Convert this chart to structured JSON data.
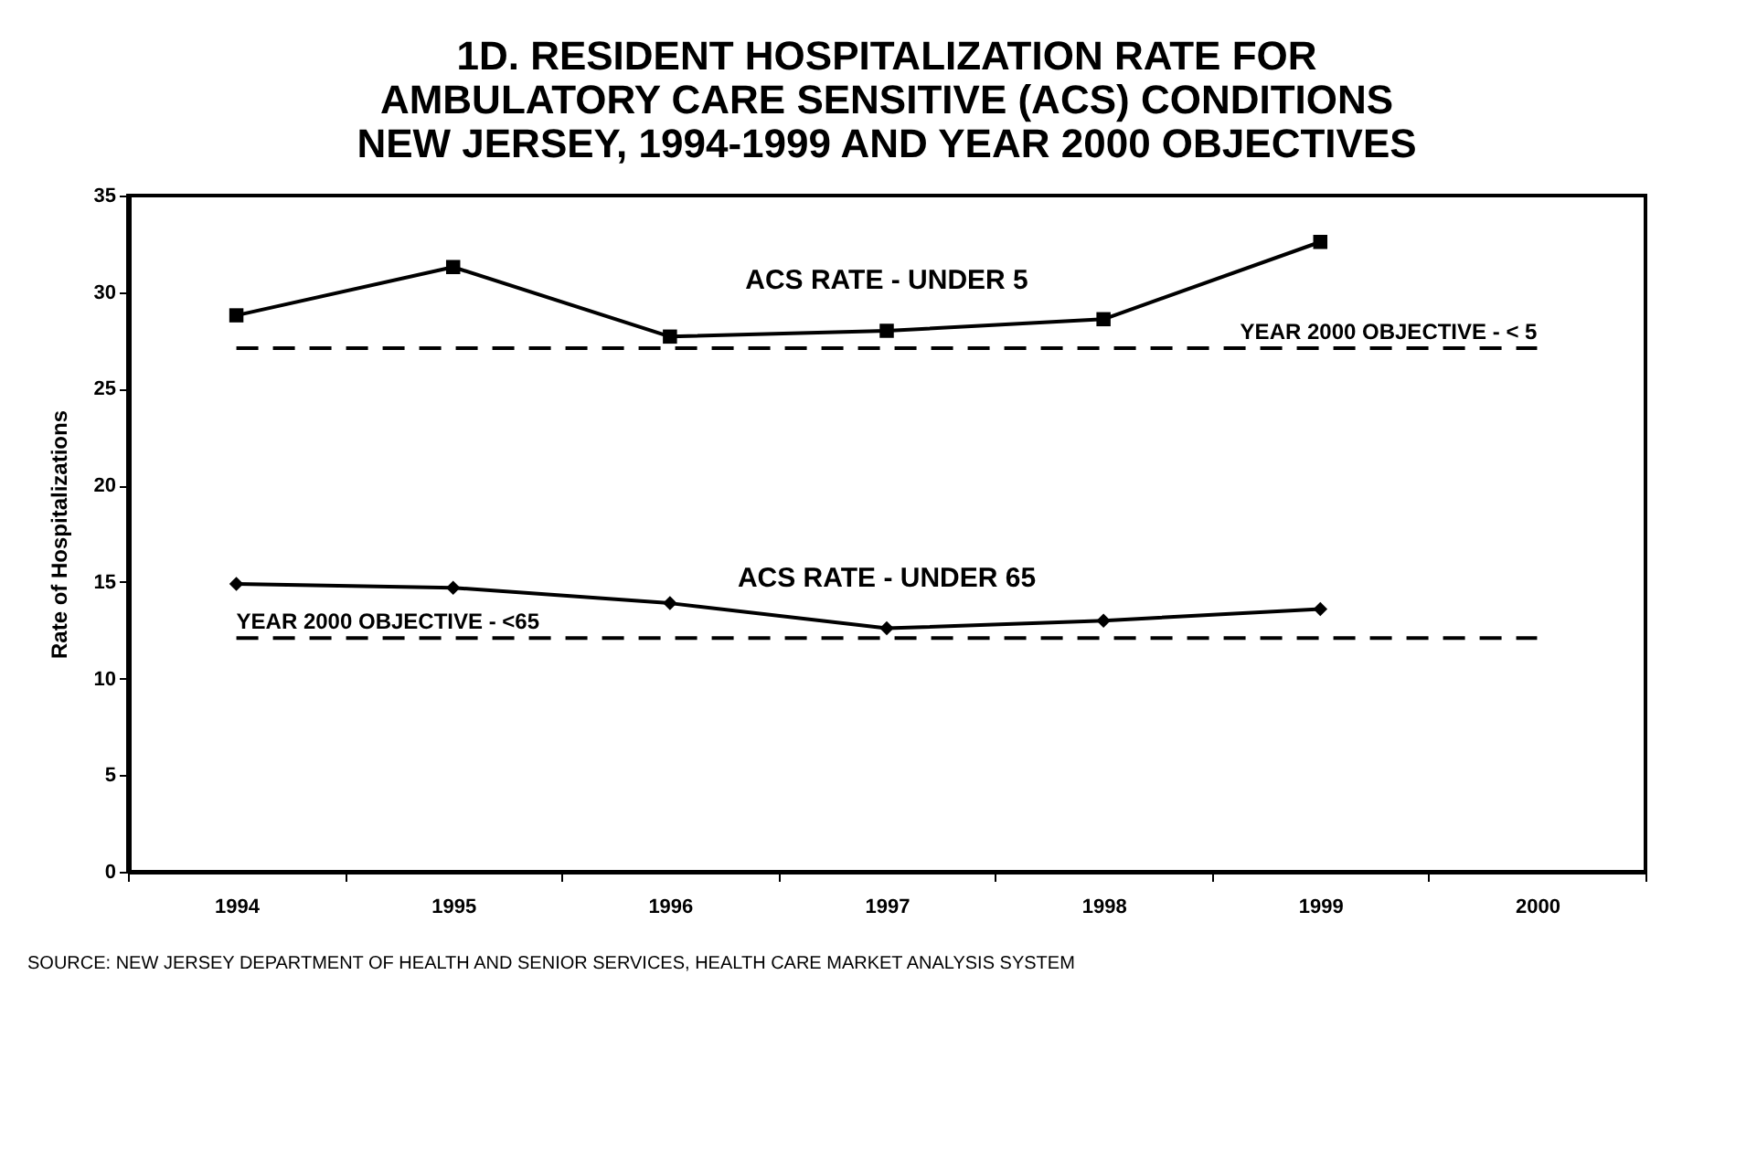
{
  "chart_data": {
    "type": "line",
    "title": [
      "1D. RESIDENT HOSPITALIZATION RATE FOR",
      "AMBULATORY CARE SENSITIVE (ACS) CONDITIONS",
      "NEW JERSEY, 1994-1999 AND YEAR 2000 OBJECTIVES"
    ],
    "ylabel": "Rate of Hospitalizations",
    "categories": [
      "1994",
      "1995",
      "1996",
      "1997",
      "1998",
      "1999",
      "2000"
    ],
    "series": [
      {
        "name": "ACS RATE - UNDER 5",
        "color": "#000000",
        "marker": "square",
        "values": [
          28.8,
          31.3,
          27.7,
          28.0,
          28.6,
          32.6,
          null
        ]
      },
      {
        "name": "ACS RATE - UNDER 65",
        "color": "#000000",
        "marker": "diamond",
        "values": [
          14.9,
          14.7,
          13.9,
          12.6,
          13.0,
          13.6,
          null
        ]
      }
    ],
    "ref_lines": [
      {
        "axis": "y",
        "value": 27.1,
        "label": "YEAR 2000 OBJECTIVE - < 5",
        "color": "#000000",
        "line_style": "dashed"
      },
      {
        "axis": "y",
        "value": 12.1,
        "label": "YEAR 2000 OBJECTIVE - <65",
        "color": "#000000",
        "line_style": "dashed"
      }
    ],
    "ylim": [
      0,
      35
    ],
    "yticks": [
      0,
      5,
      10,
      15,
      20,
      25,
      30,
      35
    ],
    "grid": false,
    "line_style": "solid",
    "annotations": [
      "SOURCE:  NEW JERSEY DEPARTMENT OF HEALTH AND SENIOR SERVICES, HEALTH CARE MARKET ANALYSIS SYSTEM"
    ]
  }
}
